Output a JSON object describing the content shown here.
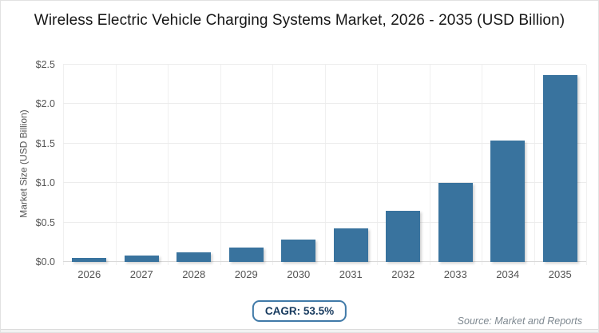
{
  "chart_data": {
    "type": "bar",
    "title": "Wireless Electric Vehicle Charging Systems Market, 2026 - 2035 (USD Billion)",
    "categories": [
      "2026",
      "2027",
      "2028",
      "2029",
      "2030",
      "2031",
      "2032",
      "2033",
      "2034",
      "2035"
    ],
    "values": [
      0.05,
      0.08,
      0.12,
      0.18,
      0.28,
      0.43,
      0.65,
      1.0,
      1.54,
      2.37
    ],
    "xlabel": "",
    "ylabel": "Market Size (USD Billion)",
    "ylim": [
      0,
      2.5
    ],
    "yticks": [
      0,
      0.5,
      1.0,
      1.5,
      2.0,
      2.5
    ],
    "ytick_labels": [
      "$0.0",
      "$0.5",
      "$1.0",
      "$1.5",
      "$2.0",
      "$2.5"
    ],
    "grid": true,
    "legend": false,
    "bar_color": "#39739E"
  },
  "annotations": {
    "cagr_label": "CAGR: 53.5%",
    "source": "Source: Market and Reports"
  }
}
